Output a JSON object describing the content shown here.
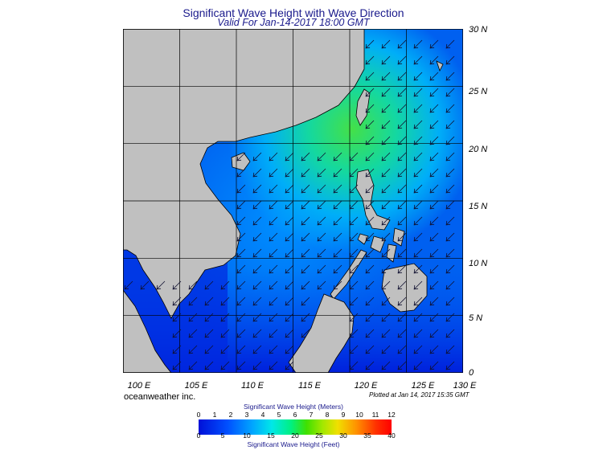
{
  "title": "Significant Wave Height with Wave Direction",
  "valid": "Valid For Jan-14-2017 18:00 GMT",
  "lon_labels": [
    "100 E",
    "105 E",
    "110 E",
    "115 E",
    "120 E",
    "125 E",
    "130 E"
  ],
  "lat_labels": [
    "30 N",
    "25 N",
    "20 N",
    "15 N",
    "10 N",
    "5 N",
    "0"
  ],
  "credit": "oceanweather inc.",
  "plotted": "Plotted at Jan 14, 2017 15:35 GMT",
  "colorbar": {
    "title_meters": "Significant Wave Height (Meters)",
    "title_feet": "Significant Wave Height (Feet)",
    "meter_ticks": [
      "0",
      "1",
      "2",
      "3",
      "4",
      "5",
      "6",
      "7",
      "8",
      "9",
      "10",
      "11",
      "12"
    ],
    "feet_ticks": [
      "0",
      "5",
      "10",
      "15",
      "20",
      "25",
      "30",
      "35",
      "40"
    ]
  },
  "colors": {
    "land": "#c0c0c0",
    "title": "#1a1a8c",
    "ocean_low": "#0010d8",
    "ocean_high": "#40e000"
  },
  "wave_direction_deg": 225
}
